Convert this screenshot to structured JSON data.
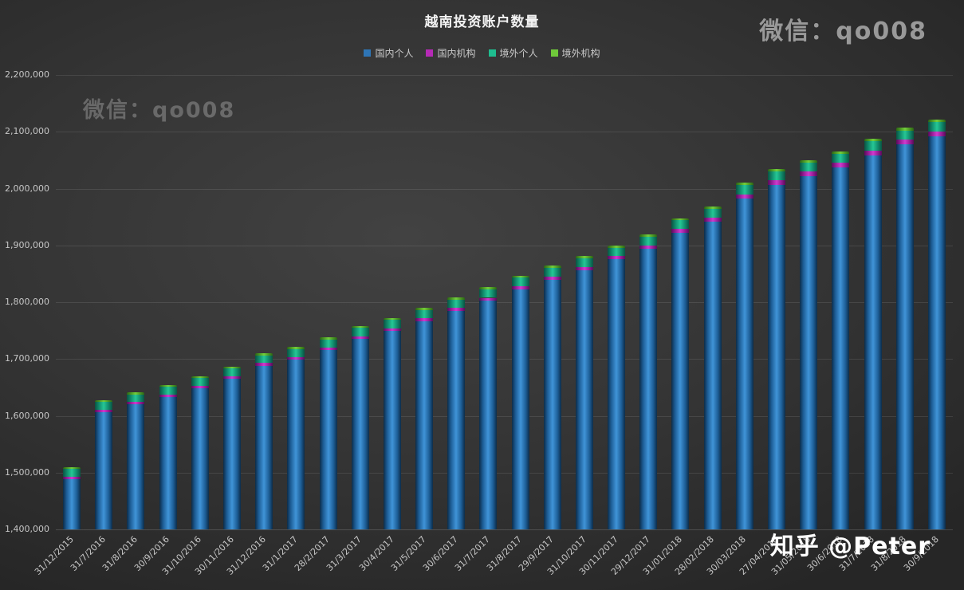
{
  "title": "越南投资账户数量",
  "watermarks": {
    "top_right": "微信：qo008",
    "plot": "微信：qo008",
    "bottom_right": "知乎 @Peter"
  },
  "chart_data": {
    "type": "bar",
    "stacked": true,
    "title": "越南投资账户数量",
    "xlabel": "",
    "ylabel": "",
    "ylim": [
      1400000,
      2200000
    ],
    "y_tick_step": 100000,
    "y_ticks": [
      "2,200,000",
      "2,100,000",
      "2,000,000",
      "1,900,000",
      "1,800,000",
      "1,700,000",
      "1,600,000",
      "1,500,000",
      "1,400,000"
    ],
    "grid": true,
    "legend_position": "top",
    "categories": [
      "31/12/2015",
      "31/7/2016",
      "31/8/2016",
      "30/9/2016",
      "31/10/2016",
      "30/11/2016",
      "31/12/2016",
      "31/1/2017",
      "28/2/2017",
      "31/3/2017",
      "30/4/2017",
      "31/5/2017",
      "30/6/2017",
      "31/7/2017",
      "31/8/2017",
      "29/9/2017",
      "31/10/2017",
      "30/11/2017",
      "29/12/2017",
      "31/01/2018",
      "28/02/2018",
      "30/03/2018",
      "27/04/2018",
      "31/05/2018",
      "30/6/2018",
      "31/7/2018",
      "31/8/2018",
      "30/9/2018"
    ],
    "series": [
      {
        "name": "国内个人",
        "color": "#2e75b6",
        "values": [
          1489000,
          1606500,
          1620200,
          1632900,
          1648600,
          1665400,
          1688000,
          1698700,
          1715500,
          1735300,
          1749000,
          1766800,
          1784500,
          1802300,
          1823000,
          1839800,
          1856500,
          1875300,
          1894000,
          1922200,
          1941400,
          1982600,
          2006800,
          2021500,
          2037100,
          2058800,
          2077400,
          2092000
        ]
      },
      {
        "name": "国内机构",
        "color": "#b52ab5",
        "values": [
          4000,
          4500,
          4500,
          4600,
          4700,
          4800,
          4900,
          5000,
          5000,
          5100,
          5200,
          5300,
          5400,
          5500,
          5600,
          5700,
          5800,
          5900,
          6000,
          6500,
          7000,
          7500,
          8000,
          8200,
          8400,
          8600,
          8800,
          9000
        ]
      },
      {
        "name": "境外个人",
        "color": "#1fbd8f",
        "values": [
          14000,
          13000,
          13200,
          13400,
          13500,
          13600,
          13800,
          14000,
          14100,
          14200,
          14300,
          14400,
          14500,
          14600,
          14700,
          14800,
          14900,
          15000,
          15100,
          15300,
          15500,
          15700,
          15900,
          16000,
          16100,
          16200,
          16300,
          16500
        ]
      },
      {
        "name": "境外机构",
        "color": "#6fc93a",
        "values": [
          3000,
          3000,
          3100,
          3100,
          3200,
          3200,
          3300,
          3300,
          3400,
          3400,
          3500,
          3500,
          3600,
          3600,
          3700,
          3700,
          3800,
          3800,
          3900,
          4000,
          4100,
          4200,
          4300,
          4300,
          4400,
          4400,
          4500,
          4500
        ]
      }
    ],
    "totals": [
      1510000,
      1627000,
      1641000,
      1654000,
      1670000,
      1687000,
      1710000,
      1721000,
      1738000,
      1758000,
      1772000,
      1790000,
      1808000,
      1826000,
      1847000,
      1864000,
      1881000,
      1900000,
      1919000,
      1948000,
      1968000,
      2010000,
      2035000,
      2050000,
      2066000,
      2088000,
      2107000,
      2122000
    ]
  }
}
